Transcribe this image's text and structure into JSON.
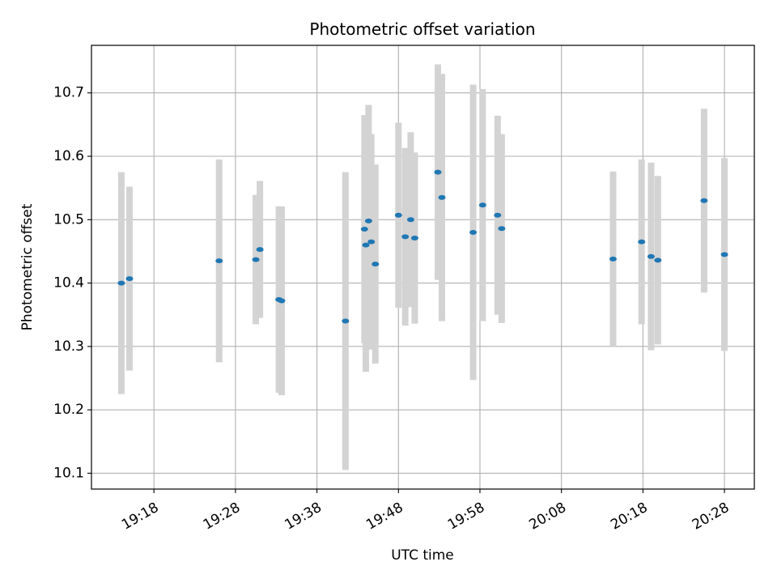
{
  "chart_data": {
    "type": "scatter",
    "title": "Photometric offset variation",
    "xlabel": "UTC time",
    "ylabel": "Photometric offset",
    "x_ticks": [
      "19:18",
      "19:28",
      "19:38",
      "19:48",
      "19:58",
      "20:08",
      "20:18",
      "20:28"
    ],
    "y_ticks": [
      "10.1",
      "10.2",
      "10.3",
      "10.4",
      "10.5",
      "10.6",
      "10.7"
    ],
    "xlim": [
      "19:10:20",
      "20:31:40"
    ],
    "ylim": [
      10.075,
      10.775
    ],
    "grid": true,
    "marker_color": "#1f77b4",
    "errorbar_color": "#d3d3d3",
    "points": [
      {
        "t": "19:14:00",
        "y": 10.4,
        "err": 0.175
      },
      {
        "t": "19:15:00",
        "y": 10.407,
        "err": 0.145
      },
      {
        "t": "19:26:00",
        "y": 10.435,
        "err": 0.16
      },
      {
        "t": "19:30:30",
        "y": 10.437,
        "err": 0.102
      },
      {
        "t": "19:31:00",
        "y": 10.453,
        "err": 0.108
      },
      {
        "t": "19:33:20",
        "y": 10.374,
        "err": 0.147
      },
      {
        "t": "19:33:40",
        "y": 10.372,
        "err": 0.149
      },
      {
        "t": "19:41:30",
        "y": 10.34,
        "err": 0.235
      },
      {
        "t": "19:43:50",
        "y": 10.485,
        "err": 0.18
      },
      {
        "t": "19:44:00",
        "y": 10.46,
        "err": 0.2
      },
      {
        "t": "19:44:20",
        "y": 10.498,
        "err": 0.183
      },
      {
        "t": "19:44:40",
        "y": 10.465,
        "err": 0.17
      },
      {
        "t": "19:45:10",
        "y": 10.43,
        "err": 0.157
      },
      {
        "t": "19:48:00",
        "y": 10.507,
        "err": 0.146
      },
      {
        "t": "19:48:50",
        "y": 10.473,
        "err": 0.14
      },
      {
        "t": "19:49:30",
        "y": 10.5,
        "err": 0.138
      },
      {
        "t": "19:50:00",
        "y": 10.471,
        "err": 0.135
      },
      {
        "t": "19:52:50",
        "y": 10.575,
        "err": 0.17
      },
      {
        "t": "19:53:20",
        "y": 10.535,
        "err": 0.195
      },
      {
        "t": "19:57:10",
        "y": 10.48,
        "err": 0.233
      },
      {
        "t": "19:58:20",
        "y": 10.523,
        "err": 0.183
      },
      {
        "t": "20:00:10",
        "y": 10.507,
        "err": 0.157
      },
      {
        "t": "20:00:40",
        "y": 10.486,
        "err": 0.149
      },
      {
        "t": "20:14:20",
        "y": 10.438,
        "err": 0.138
      },
      {
        "t": "20:17:50",
        "y": 10.465,
        "err": 0.13
      },
      {
        "t": "20:19:00",
        "y": 10.442,
        "err": 0.148
      },
      {
        "t": "20:19:50",
        "y": 10.436,
        "err": 0.133
      },
      {
        "t": "20:25:30",
        "y": 10.53,
        "err": 0.145
      },
      {
        "t": "20:28:00",
        "y": 10.445,
        "err": 0.152
      }
    ]
  }
}
